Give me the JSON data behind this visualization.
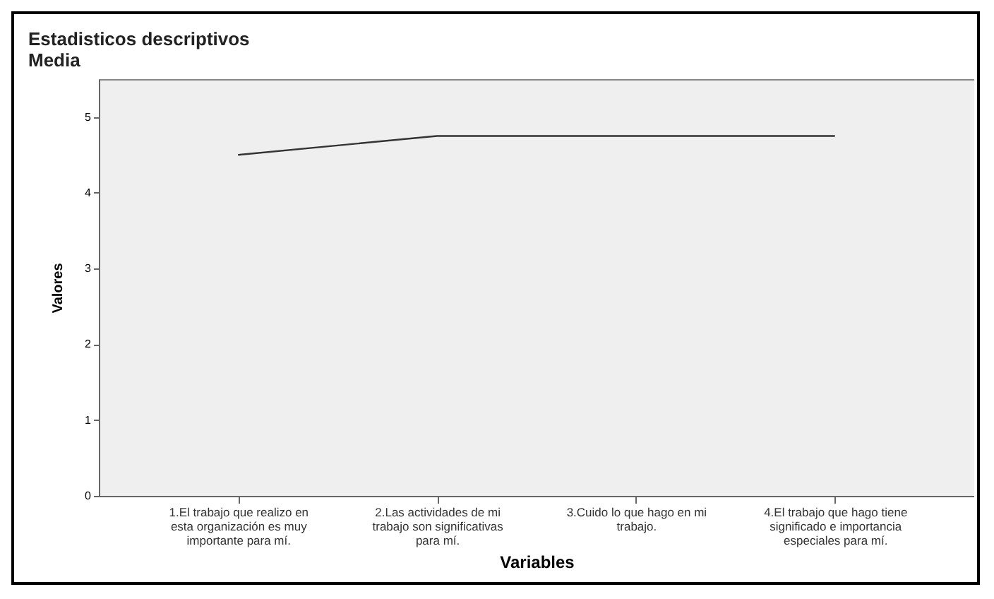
{
  "chart_data": {
    "type": "line",
    "title": "Estadisticos descriptivos",
    "subtitle": "Media",
    "xlabel": "Variables",
    "ylabel": "Valores",
    "categories": [
      "1.El trabajo que realizo en esta organización es muy importante para mí.",
      "2.Las actividades de mi trabajo son significativas para mí.",
      "3.Cuido lo que hago en mi trabajo.",
      "4.El trabajo que hago tiene significado e importancia especiales para mí."
    ],
    "series": [
      {
        "color": "#333333",
        "values": [
          4.5,
          4.75,
          4.75,
          4.75
        ]
      }
    ],
    "ylim": [
      0,
      5.5
    ],
    "yticks": [
      0,
      1,
      2,
      3,
      4,
      5
    ],
    "grid": false,
    "legend": false,
    "marker": "none",
    "line_style": "solid"
  }
}
